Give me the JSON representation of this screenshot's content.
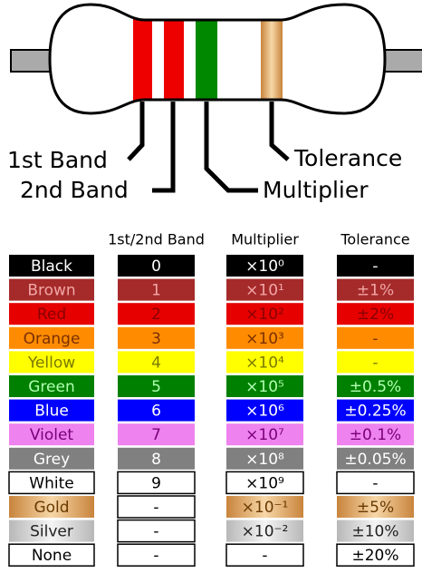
{
  "labels": {
    "band1": "1st Band",
    "band2": "2nd Band",
    "multiplier": "Multiplier",
    "tolerance": "Tolerance"
  },
  "table": {
    "header": [
      "1st/2nd Band",
      "Multiplier",
      "Tolerance"
    ],
    "rows": [
      [
        "Black",
        "0",
        "×10⁰",
        "-"
      ],
      [
        "Brown",
        "1",
        "×10¹",
        "±1%"
      ],
      [
        "Red",
        "2",
        "×10²",
        "±2%"
      ],
      [
        "Orange",
        "3",
        "×10³",
        "-"
      ],
      [
        "Yellow",
        "4",
        "×10⁴",
        "-"
      ],
      [
        "Green",
        "5",
        "×10⁵",
        "±0.5%"
      ],
      [
        "Blue",
        "6",
        "×10⁶",
        "±0.25%"
      ],
      [
        "Violet",
        "7",
        "×10⁷",
        "±0.1%"
      ],
      [
        "Grey",
        "8",
        "×10⁸",
        "±0.05%"
      ],
      [
        "White",
        "9",
        "×10⁹",
        "-"
      ],
      [
        "Gold",
        "-",
        "×10⁻¹",
        "±5%"
      ],
      [
        "Silver",
        "-",
        "×10⁻²",
        "±10%"
      ],
      [
        "None",
        "-",
        "-",
        "±20%"
      ]
    ]
  }
}
